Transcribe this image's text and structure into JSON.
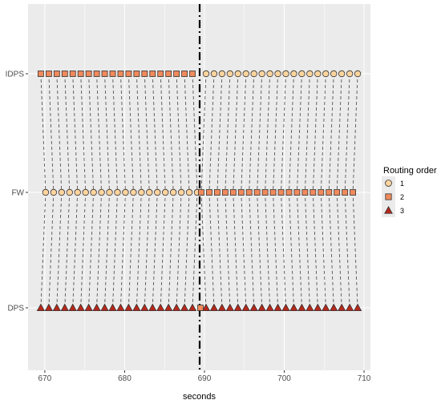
{
  "chart_data": {
    "type": "scatter",
    "xlabel": "seconds",
    "ylabel": "",
    "xlim": [
      667.9,
      710.8
    ],
    "x_ticks": [
      670,
      680,
      690,
      700,
      710
    ],
    "y_categories": [
      "DPS",
      "FW",
      "IDPS"
    ],
    "legend": {
      "title": "Routing order",
      "position": "right",
      "entries": [
        {
          "label": "1",
          "shape": "circle",
          "color": "#FDD49E"
        },
        {
          "label": "2",
          "shape": "square",
          "color": "#F08A5C"
        },
        {
          "label": "3",
          "shape": "triangle",
          "color": "#B7281B"
        }
      ]
    },
    "vline": {
      "x": 689.4,
      "style": "dashdot",
      "color": "#000000"
    },
    "series_before": {
      "x": [
        669.5,
        670.5,
        671.5,
        672.5,
        673.5,
        674.5,
        675.5,
        676.5,
        677.5,
        678.5,
        679.5,
        680.5,
        681.5,
        682.5,
        683.5,
        684.5,
        685.5,
        686.5,
        687.5,
        688.5
      ],
      "fw_offset": 0.6,
      "DPS": "3",
      "FW": "1",
      "IDPS": "2"
    },
    "series_after": {
      "x": [
        690.2,
        691.2,
        692.2,
        693.2,
        694.2,
        695.2,
        696.2,
        697.2,
        698.2,
        699.2,
        700.2,
        701.2,
        702.2,
        703.2,
        704.2,
        705.2,
        706.2,
        707.2,
        708.2,
        709.2
      ],
      "fw_offset": -0.6,
      "DPS": "3",
      "FW": "2",
      "IDPS": "1"
    },
    "extra_points": [
      {
        "x": 689.5,
        "y": "DPS",
        "group": "2"
      }
    ],
    "grid": true
  }
}
